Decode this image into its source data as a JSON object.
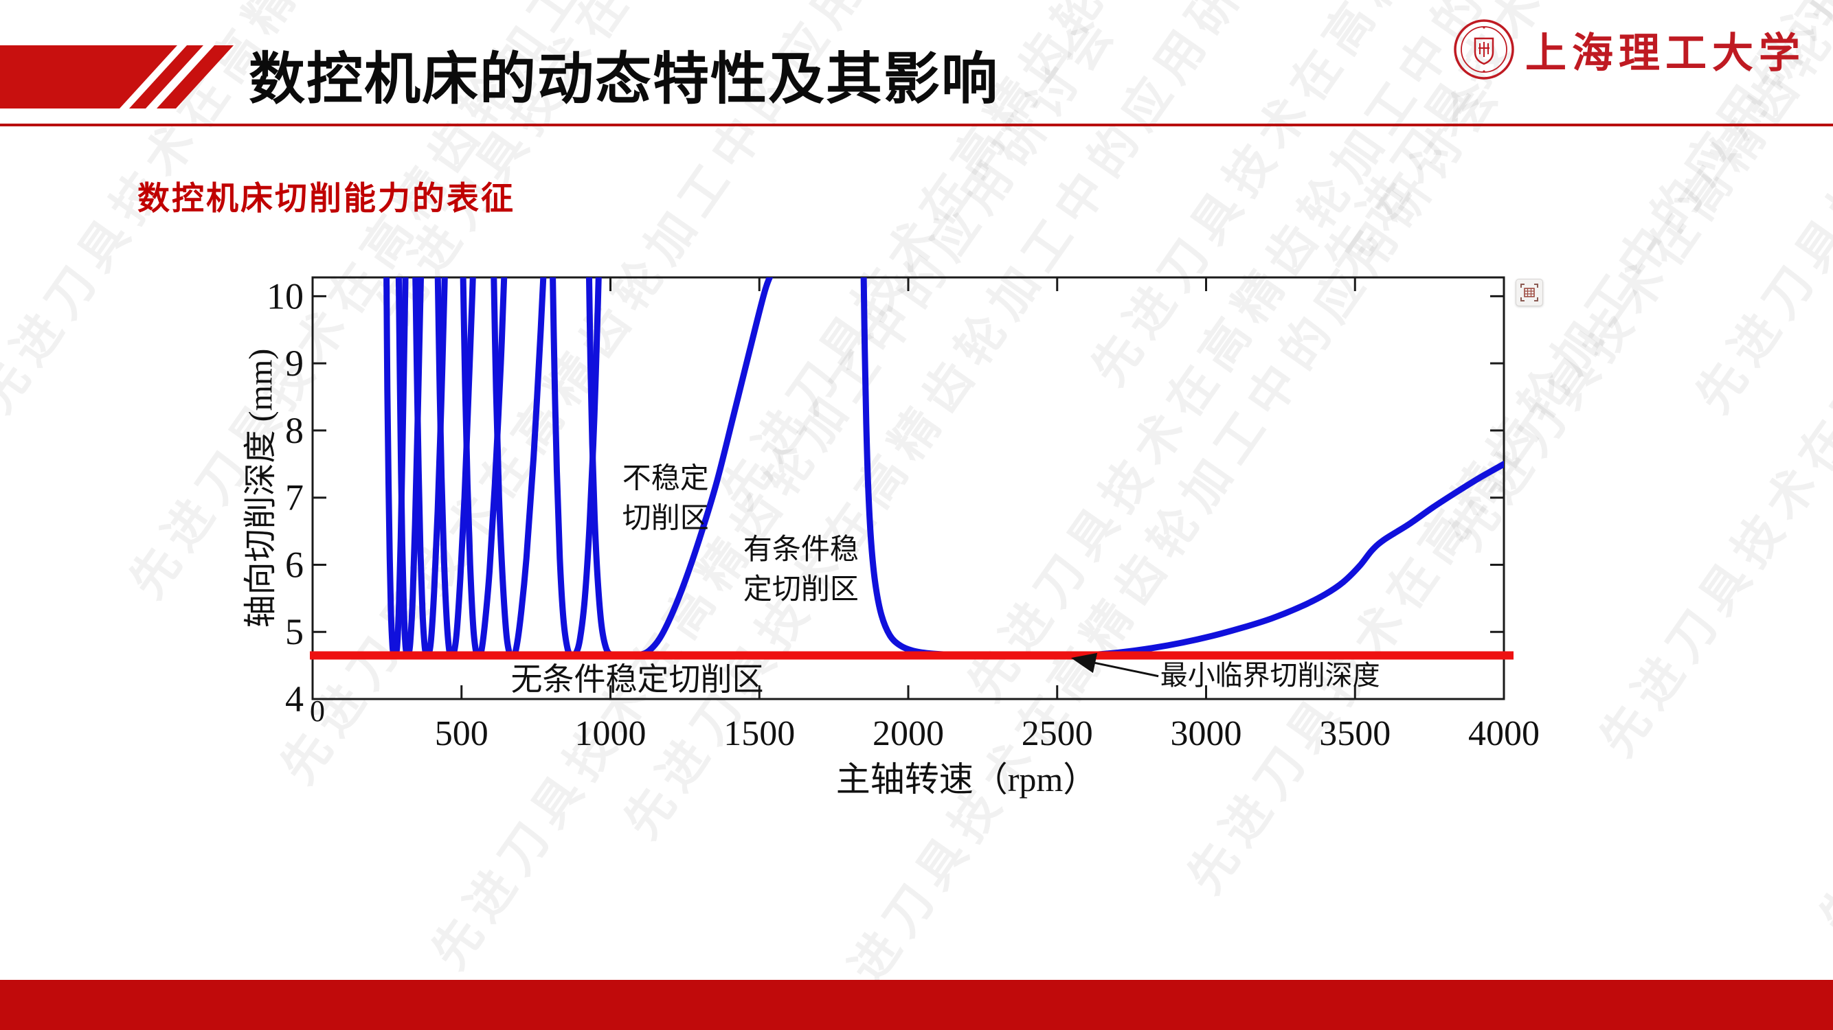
{
  "header": {
    "title": "数控机床的动态特性及其影响",
    "accent_color": "#c8100f",
    "underline_color": "#b80e0e"
  },
  "logo": {
    "university_name": "上海理工大学",
    "color": "#bf1a22"
  },
  "subtitle": {
    "text": "数控机床切削能力的表征",
    "color": "#c00000"
  },
  "watermark": {
    "text": "先进刀具技术在高精齿轮加工中的应用研讨会"
  },
  "floating_icon": {
    "name": "table-capture"
  },
  "footer": {
    "color": "#c00a0b"
  },
  "chart_data": {
    "type": "line",
    "title": "",
    "xlabel": "主轴转速（rpm）",
    "ylabel": "轴向切削深度 (mm)",
    "xlim": [
      0,
      4000
    ],
    "ylim": [
      4,
      10.28
    ],
    "xticks": [
      500,
      1000,
      1500,
      2000,
      2500,
      3000,
      3500,
      4000
    ],
    "yticks": [
      4,
      5,
      6,
      7,
      8,
      9,
      10
    ],
    "origin_label": "0",
    "grid": false,
    "legend_position": "none",
    "series_color": "#1010dc",
    "frame_color": "#1a1a1a",
    "critical_line": {
      "value": 4.65,
      "color": "#ee1111",
      "meaning": "最小临界切削深度"
    },
    "series": [
      {
        "name": "stability-lobe-1",
        "points": [
          [
            248,
            10.4
          ],
          [
            251,
            8.6
          ],
          [
            255,
            7.2
          ],
          [
            259,
            6.1
          ],
          [
            263,
            5.3
          ],
          [
            268,
            4.8
          ],
          [
            272,
            4.66
          ],
          [
            278,
            4.66
          ],
          [
            284,
            4.8
          ],
          [
            290,
            5.4
          ],
          [
            296,
            6.4
          ],
          [
            302,
            7.8
          ],
          [
            308,
            9.3
          ],
          [
            312,
            10.4
          ]
        ]
      },
      {
        "name": "stability-lobe-2",
        "points": [
          [
            289,
            10.4
          ],
          [
            293,
            8.8
          ],
          [
            297,
            7.4
          ],
          [
            301,
            6.3
          ],
          [
            306,
            5.4
          ],
          [
            311,
            4.85
          ],
          [
            316,
            4.66
          ],
          [
            322,
            4.66
          ],
          [
            328,
            4.85
          ],
          [
            336,
            5.5
          ],
          [
            344,
            6.6
          ],
          [
            352,
            8.0
          ],
          [
            360,
            9.6
          ],
          [
            364,
            10.4
          ]
        ]
      },
      {
        "name": "stability-lobe-3",
        "points": [
          [
            345,
            10.4
          ],
          [
            350,
            8.9
          ],
          [
            356,
            7.4
          ],
          [
            362,
            6.2
          ],
          [
            369,
            5.3
          ],
          [
            376,
            4.8
          ],
          [
            382,
            4.66
          ],
          [
            390,
            4.67
          ],
          [
            398,
            4.9
          ],
          [
            408,
            5.6
          ],
          [
            420,
            6.8
          ],
          [
            432,
            8.4
          ],
          [
            442,
            10.0
          ],
          [
            444,
            10.4
          ]
        ]
      },
      {
        "name": "stability-lobe-4",
        "points": [
          [
            420,
            10.4
          ],
          [
            426,
            8.8
          ],
          [
            433,
            7.3
          ],
          [
            441,
            6.1
          ],
          [
            450,
            5.2
          ],
          [
            458,
            4.75
          ],
          [
            465,
            4.65
          ],
          [
            474,
            4.68
          ],
          [
            484,
            5.0
          ],
          [
            496,
            5.8
          ],
          [
            510,
            7.0
          ],
          [
            524,
            8.6
          ],
          [
            536,
            10.0
          ],
          [
            539,
            10.4
          ]
        ]
      },
      {
        "name": "stability-lobe-5",
        "points": [
          [
            505,
            10.4
          ],
          [
            512,
            8.7
          ],
          [
            520,
            7.2
          ],
          [
            529,
            6.0
          ],
          [
            539,
            5.1
          ],
          [
            548,
            4.72
          ],
          [
            556,
            4.65
          ],
          [
            566,
            4.7
          ],
          [
            578,
            5.1
          ],
          [
            594,
            5.9
          ],
          [
            612,
            7.2
          ],
          [
            632,
            9.0
          ],
          [
            644,
            10.4
          ]
        ]
      },
      {
        "name": "stability-lobe-6",
        "points": [
          [
            608,
            10.4
          ],
          [
            616,
            8.6
          ],
          [
            626,
            7.0
          ],
          [
            638,
            5.8
          ],
          [
            650,
            5.0
          ],
          [
            660,
            4.7
          ],
          [
            670,
            4.65
          ],
          [
            682,
            4.72
          ],
          [
            698,
            5.2
          ],
          [
            718,
            6.1
          ],
          [
            742,
            7.6
          ],
          [
            766,
            9.5
          ],
          [
            776,
            10.4
          ]
        ]
      },
      {
        "name": "stability-lobe-7",
        "points": [
          [
            806,
            10.4
          ],
          [
            812,
            8.9
          ],
          [
            820,
            7.4
          ],
          [
            830,
            6.1
          ],
          [
            842,
            5.2
          ],
          [
            856,
            4.75
          ],
          [
            870,
            4.65
          ],
          [
            884,
            4.68
          ],
          [
            898,
            4.9
          ],
          [
            914,
            5.5
          ],
          [
            930,
            6.6
          ],
          [
            946,
            8.2
          ],
          [
            958,
            9.9
          ],
          [
            961,
            10.4
          ]
        ]
      },
      {
        "name": "stability-lobe-8",
        "points": [
          [
            928,
            10.4
          ],
          [
            933,
            9.0
          ],
          [
            939,
            7.8
          ],
          [
            947,
            6.7
          ],
          [
            957,
            5.8
          ],
          [
            970,
            5.1
          ],
          [
            986,
            4.75
          ],
          [
            1004,
            4.66
          ],
          [
            1030,
            4.65
          ],
          [
            1070,
            4.65
          ],
          [
            1100,
            4.66
          ],
          [
            1130,
            4.72
          ],
          [
            1165,
            4.9
          ],
          [
            1205,
            5.25
          ],
          [
            1250,
            5.75
          ],
          [
            1300,
            6.4
          ],
          [
            1355,
            7.2
          ],
          [
            1412,
            8.2
          ],
          [
            1468,
            9.2
          ],
          [
            1520,
            10.1
          ],
          [
            1548,
            10.4
          ]
        ]
      },
      {
        "name": "stability-lobe-9",
        "points": [
          [
            1850,
            10.4
          ],
          [
            1854,
            9.2
          ],
          [
            1859,
            8.1
          ],
          [
            1866,
            7.1
          ],
          [
            1876,
            6.3
          ],
          [
            1890,
            5.7
          ],
          [
            1910,
            5.25
          ],
          [
            1938,
            4.95
          ],
          [
            1972,
            4.8
          ],
          [
            2015,
            4.72
          ],
          [
            2070,
            4.68
          ],
          [
            2140,
            4.66
          ],
          [
            2230,
            4.65
          ],
          [
            2380,
            4.65
          ],
          [
            2520,
            4.65
          ],
          [
            2620,
            4.66
          ],
          [
            2720,
            4.7
          ],
          [
            2820,
            4.76
          ],
          [
            2920,
            4.84
          ],
          [
            3020,
            4.94
          ],
          [
            3120,
            5.06
          ],
          [
            3220,
            5.2
          ],
          [
            3320,
            5.38
          ],
          [
            3400,
            5.56
          ],
          [
            3460,
            5.74
          ],
          [
            3515,
            5.98
          ],
          [
            3558,
            6.22
          ],
          [
            3600,
            6.38
          ],
          [
            3680,
            6.6
          ],
          [
            3760,
            6.85
          ],
          [
            3840,
            7.08
          ],
          [
            3920,
            7.3
          ],
          [
            4000,
            7.5
          ]
        ]
      }
    ],
    "annotations": [
      {
        "id": "unstable-zone",
        "text_lines": [
          "不稳定",
          "切削区"
        ],
        "rpm": 1185,
        "ap": 7.0,
        "font": 42
      },
      {
        "id": "conditionally-stable-zone",
        "text_lines": [
          "有条件稳",
          "定切削区"
        ],
        "rpm": 1640,
        "ap": 5.94,
        "font": 42
      },
      {
        "id": "unconditionally-stable-zone",
        "text_lines": [
          "无条件稳定切削区"
        ],
        "rpm": 1090,
        "ap": 4.3,
        "font": 46
      },
      {
        "id": "min-critical-depth-label",
        "text_lines": [
          "最小临界切削深度"
        ],
        "rpm": 3215,
        "ap": 4.36,
        "font": 40
      }
    ],
    "arrow": {
      "from_rpm": 2840,
      "from_ap": 4.34,
      "to_rpm": 2560,
      "to_ap": 4.6
    }
  }
}
